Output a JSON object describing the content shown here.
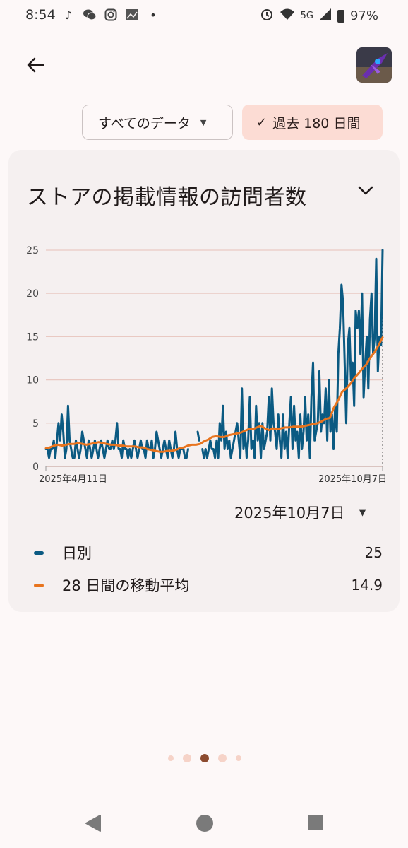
{
  "status_bar": {
    "time": "8:54",
    "network": "5G",
    "battery": "97%",
    "left_icons": [
      "tiktok-icon",
      "wechat-icon",
      "instagram-icon",
      "gallery-icon",
      "dot-icon"
    ],
    "right_icons": [
      "alarm-icon",
      "wifi-icon",
      "signal-icon",
      "battery-icon"
    ]
  },
  "filters": {
    "all_data": "すべてのデータ",
    "range": "過去 180 日間"
  },
  "card": {
    "title": "ストアの掲載情報の訪問者数",
    "selected_date": "2025年10月7日",
    "legend": [
      {
        "label": "日別",
        "value": "25",
        "color": "#0b5a82"
      },
      {
        "label": "28 日間の移動平均",
        "value": "14.9",
        "color": "#e8741e"
      }
    ]
  },
  "pager": {
    "pages": 5,
    "current": 3
  },
  "colors": {
    "daily": "#0b5a82",
    "average": "#e8741e",
    "grid": "#e9c9c2",
    "chip_active": "#fcdcd4"
  },
  "chart_data": {
    "type": "line",
    "x_start_label": "2025年4月11日",
    "x_end_label": "2025年10月7日",
    "ylim": [
      0,
      25
    ],
    "yticks": [
      0,
      5,
      10,
      15,
      20,
      25
    ],
    "grid": true,
    "series": [
      {
        "name": "日別",
        "values": [
          2,
          2,
          1,
          2,
          2,
          3,
          1,
          3,
          5,
          3,
          6,
          4,
          1,
          2,
          7,
          3,
          2,
          1,
          1,
          3,
          2,
          1,
          2,
          4,
          3,
          2,
          1,
          3,
          2,
          1,
          2,
          3,
          2,
          1,
          2,
          3,
          2,
          1,
          2,
          3,
          2,
          2,
          3,
          2,
          3,
          5,
          2,
          2,
          1,
          3,
          2,
          2,
          1,
          2,
          1,
          2,
          3,
          2,
          1,
          2,
          3,
          2,
          2,
          1,
          3,
          2,
          2,
          3,
          1,
          2,
          4,
          3,
          2,
          1,
          2,
          3,
          2,
          1,
          3,
          2,
          1,
          2,
          4,
          2,
          1,
          2,
          2,
          2,
          1,
          1,
          2,
          null,
          null,
          null,
          null,
          null,
          4,
          3,
          null,
          2,
          1,
          2,
          1,
          2,
          3,
          2,
          2,
          1,
          3,
          1,
          5,
          3,
          7,
          2,
          4,
          2,
          3,
          1,
          2,
          3,
          4,
          5,
          3,
          1,
          9,
          2,
          4,
          1,
          3,
          8,
          2,
          3,
          1,
          7,
          3,
          5,
          1,
          5,
          2,
          3,
          4,
          8,
          3,
          9,
          5,
          4,
          2,
          6,
          3,
          1,
          6,
          2,
          4,
          1,
          5,
          8,
          2,
          7,
          3,
          4,
          1,
          6,
          2,
          4,
          8,
          3,
          6,
          1,
          8,
          12,
          3,
          4,
          5,
          11,
          4,
          6,
          5,
          9,
          3,
          10,
          4,
          6,
          2,
          7,
          4,
          13,
          16,
          21,
          19,
          12,
          5,
          14,
          16,
          10,
          12,
          7,
          18,
          16,
          18,
          13,
          20,
          8,
          12,
          15,
          9,
          17,
          20,
          13,
          15,
          24,
          11,
          15,
          14,
          25
        ],
        "color": "#0b5a82"
      },
      {
        "name": "28 日間の移動平均",
        "values": [
          2.1,
          2.2,
          2.4,
          2.5,
          2.4,
          2.5,
          2.6,
          2.6,
          2.7,
          2.6,
          2.5,
          2.6,
          2.7,
          2.8,
          2.7,
          2.6,
          2.5,
          2.5,
          2.4,
          2.4,
          2.3,
          2.3,
          2.3,
          2.2,
          2.2,
          2.0,
          1.9,
          1.8,
          1.7,
          1.7,
          1.8,
          1.8,
          1.9,
          2.1,
          2.2,
          2.4,
          2.5,
          2.5,
          2.6,
          2.9,
          3.1,
          3.4,
          3.5,
          3.4,
          3.4,
          3.6,
          3.7,
          3.8,
          3.9,
          4.1,
          4.3,
          4.3,
          4.5,
          4.7,
          4.4,
          4.2,
          4.4,
          4.3,
          4.4,
          4.5,
          4.5,
          4.6,
          4.6,
          4.6,
          4.7,
          4.8,
          4.9,
          5.0,
          5.2,
          5.5,
          5.6,
          6.8,
          7.6,
          8.6,
          9.0,
          9.5,
          10.2,
          10.7,
          11.3,
          11.8,
          12.6,
          13.2,
          14.0,
          14.9
        ],
        "color": "#e8741e"
      }
    ]
  }
}
